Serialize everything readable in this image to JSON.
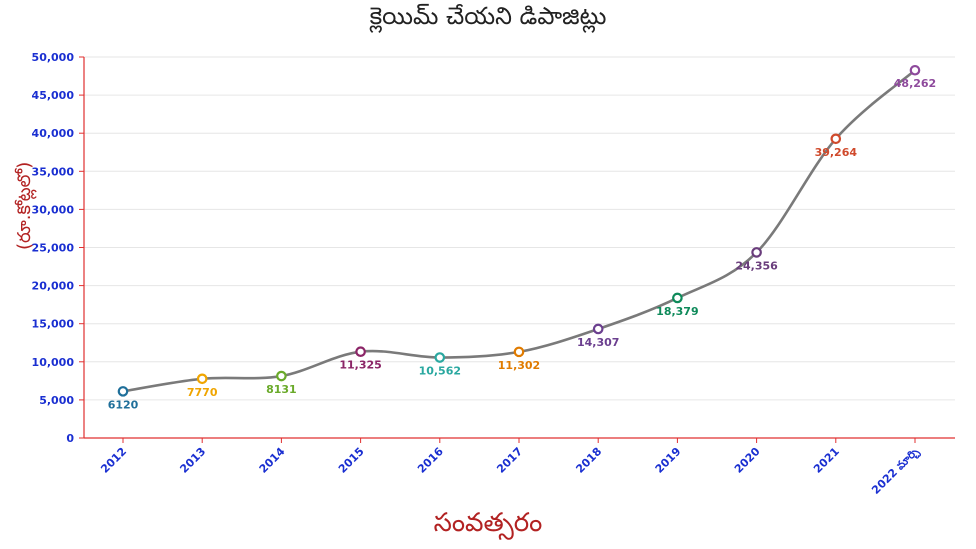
{
  "chart_data": {
    "type": "line",
    "title": "క్లెయిమ్ చేయని డిపాజిట్లు",
    "xlabel": "సంవత్సరం",
    "ylabel": "(రూ.కోట్లలో)",
    "categories": [
      "2012",
      "2013",
      "2014",
      "2015",
      "2016",
      "2017",
      "2018",
      "2019",
      "2020",
      "2021",
      "2022 మార్చి"
    ],
    "values": [
      6120,
      7770,
      8131,
      11325,
      10562,
      11302,
      14307,
      18379,
      24356,
      39264,
      48262
    ],
    "data_labels": [
      "6120",
      "7770",
      "8131",
      "11,325",
      "10,562",
      "11,302",
      "14,307",
      "18,379",
      "24,356",
      "39,264",
      "48,262"
    ],
    "point_colors": [
      "#1f6f9a",
      "#f0a500",
      "#6aaa2a",
      "#8b2567",
      "#2aa8a0",
      "#e07b00",
      "#6b3f8f",
      "#0e8a5a",
      "#6a3d7c",
      "#d04a2c",
      "#8e4a9c"
    ],
    "line_color": "#7a7a7a",
    "ylim": [
      0,
      50000
    ],
    "yticks": [
      0,
      5000,
      10000,
      15000,
      20000,
      25000,
      30000,
      35000,
      40000,
      45000,
      50000
    ],
    "ytick_labels": [
      "0",
      "5,000",
      "10,000",
      "15,000",
      "20,000",
      "25,000",
      "30,000",
      "35,000",
      "40,000",
      "45,000",
      "50,000"
    ],
    "grid": true,
    "axis_color": "#e03030",
    "tick_color": "#1a2fd1"
  }
}
